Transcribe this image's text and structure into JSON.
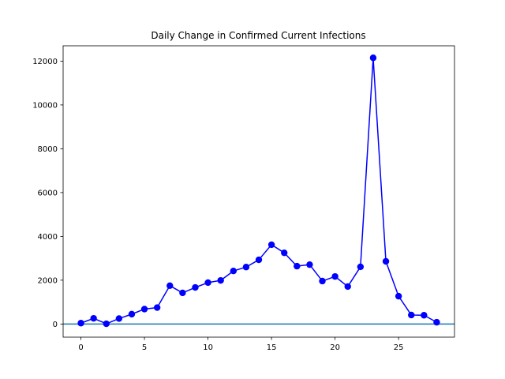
{
  "chart_data": {
    "type": "line",
    "title": "Daily Change in Confirmed Current Infections",
    "xlabel": "",
    "ylabel": "",
    "xlim": [
      -1.4,
      29.4
    ],
    "ylim": [
      -600,
      12700
    ],
    "x_ticks": [
      0,
      5,
      10,
      15,
      20,
      25
    ],
    "y_ticks": [
      0,
      2000,
      4000,
      6000,
      8000,
      10000,
      12000
    ],
    "grid": false,
    "legend": "none",
    "baseline": {
      "y": 0,
      "color": "#1f77b4"
    },
    "series": [
      {
        "color": "#0000ff",
        "marker": "circle",
        "x": [
          0,
          1,
          2,
          3,
          4,
          5,
          6,
          7,
          8,
          9,
          10,
          11,
          12,
          13,
          14,
          15,
          16,
          17,
          18,
          19,
          20,
          21,
          22,
          23,
          24,
          25,
          26,
          27,
          28
        ],
        "y": [
          40,
          260,
          10,
          250,
          450,
          680,
          750,
          1750,
          1420,
          1670,
          1890,
          1990,
          2420,
          2600,
          2930,
          3620,
          3250,
          2640,
          2710,
          1960,
          2170,
          1710,
          2610,
          12150,
          2860,
          1270,
          410,
          400,
          80
        ]
      }
    ]
  }
}
